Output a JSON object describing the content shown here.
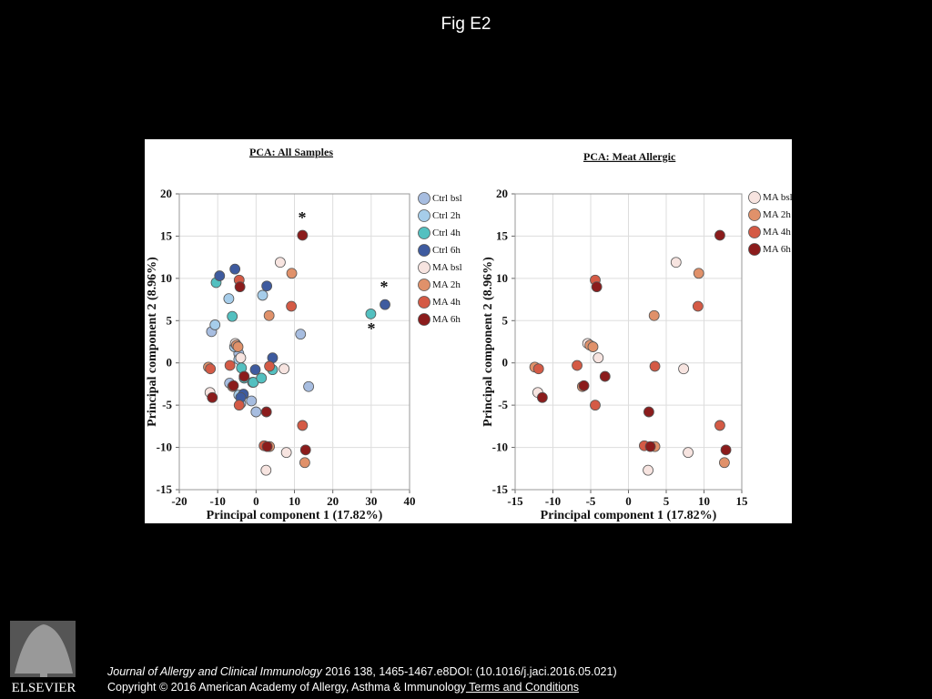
{
  "title": "Fig E2",
  "chart_data": [
    {
      "type": "scatter",
      "title": "PCA: All Samples",
      "x_label": "Principal component 1 (17.82%)",
      "y_label": "Principal component 2 (8.96%)",
      "xlim": [
        -20,
        40
      ],
      "ylim": [
        -15,
        20
      ],
      "xticks": [
        -20,
        -10,
        0,
        10,
        20,
        30,
        40
      ],
      "yticks": [
        -15,
        -10,
        -5,
        0,
        5,
        10,
        15,
        20
      ],
      "grid": true,
      "legend": "right",
      "annotations": [
        "*",
        "*",
        "*"
      ],
      "series": [
        {
          "name": "Ctrl bsl",
          "color": "#a7bde0",
          "x": [
            -11.6,
            11.6,
            13.7,
            0,
            -1.2,
            -4.0,
            -6.9,
            -4.5
          ],
          "values": [
            3.7,
            3.4,
            -2.8,
            -5.8,
            -4.5,
            -4.8,
            -2.4,
            1.1
          ]
        },
        {
          "name": "Ctrl 2h",
          "color": "#a6cdea",
          "x": [
            -10.7,
            -7.1,
            1.7,
            -4.5,
            -0.9,
            -4.5,
            -5.6
          ],
          "values": [
            4.5,
            7.6,
            8.0,
            0.4,
            -2.3,
            -3.8,
            1.9
          ]
        },
        {
          "name": "Ctrl 4h",
          "color": "#53c0c0",
          "x": [
            -10.4,
            -6.2,
            29.9,
            -3.8,
            -0.7,
            1.4,
            4.3,
            -3.1
          ],
          "values": [
            9.5,
            5.5,
            5.8,
            -0.6,
            -2.3,
            -1.8,
            -0.8,
            -1.8
          ]
        },
        {
          "name": "Ctrl 6h",
          "color": "#3e5b9f",
          "x": [
            -9.5,
            -5.5,
            2.8,
            33.6,
            4.3,
            -0.2,
            -3.3,
            -4.0
          ],
          "values": [
            10.3,
            11.1,
            9.1,
            6.9,
            0.6,
            -0.8,
            -3.7,
            -4.1
          ]
        },
        {
          "name": "MA bsl",
          "color": "#f7e4e0",
          "x": [
            6.3,
            -5.4,
            -4.0,
            -12.0,
            7.3,
            7.9,
            2.6
          ],
          "values": [
            11.9,
            2.3,
            0.6,
            -3.5,
            -0.7,
            -10.6,
            -12.7
          ]
        },
        {
          "name": "MA 2h",
          "color": "#e0916a",
          "x": [
            9.3,
            3.4,
            -5.1,
            -4.7,
            -12.4,
            -6.1,
            3.5,
            12.7
          ],
          "values": [
            10.6,
            5.6,
            2.1,
            1.9,
            -0.5,
            -2.8,
            -9.9,
            -11.8
          ]
        },
        {
          "name": "MA 4h",
          "color": "#d45a45",
          "x": [
            -4.4,
            9.2,
            -6.8,
            3.5,
            -11.9,
            -4.4,
            12.1,
            2.1
          ],
          "values": [
            9.8,
            6.7,
            -0.3,
            -0.4,
            -0.7,
            -5.0,
            -7.4,
            -9.8
          ]
        },
        {
          "name": "MA 6h",
          "color": "#8b1c1c",
          "x": [
            12.1,
            -4.2,
            -3.1,
            -5.9,
            -11.4,
            2.7,
            2.9,
            12.9
          ],
          "values": [
            15.1,
            9.0,
            -1.6,
            -2.7,
            -4.1,
            -5.8,
            -9.9,
            -10.3
          ]
        }
      ]
    },
    {
      "type": "scatter",
      "title": "PCA: Meat Allergic",
      "x_label": "Principal component 1 (17.82%)",
      "y_label": "Principal component 2 (8.96%)",
      "xlim": [
        -15,
        15
      ],
      "ylim": [
        -15,
        20
      ],
      "xticks": [
        -15,
        -10,
        -5,
        0,
        5,
        10,
        15
      ],
      "yticks": [
        -15,
        -10,
        -5,
        0,
        5,
        10,
        15,
        20
      ],
      "grid": true,
      "legend": "right",
      "series": [
        {
          "name": "MA bsl",
          "color": "#f7e4e0",
          "x": [
            6.3,
            -5.4,
            -4.0,
            -12.0,
            7.3,
            7.9,
            2.6
          ],
          "values": [
            11.9,
            2.3,
            0.6,
            -3.5,
            -0.7,
            -10.6,
            -12.7
          ]
        },
        {
          "name": "MA 2h",
          "color": "#e0916a",
          "x": [
            9.3,
            3.4,
            -5.1,
            -4.7,
            -12.4,
            -6.1,
            3.5,
            12.7
          ],
          "values": [
            10.6,
            5.6,
            2.1,
            1.9,
            -0.5,
            -2.8,
            -9.9,
            -11.8
          ]
        },
        {
          "name": "MA 4h",
          "color": "#d45a45",
          "x": [
            -4.4,
            9.2,
            -6.8,
            3.5,
            -11.9,
            -4.4,
            12.1,
            2.1
          ],
          "values": [
            9.8,
            6.7,
            -0.3,
            -0.4,
            -0.7,
            -5.0,
            -7.4,
            -9.8
          ]
        },
        {
          "name": "MA 6h",
          "color": "#8b1c1c",
          "x": [
            12.1,
            -4.2,
            -3.1,
            -5.9,
            -11.4,
            2.7,
            2.9,
            12.9
          ],
          "values": [
            15.1,
            9.0,
            -1.6,
            -2.7,
            -4.1,
            -5.8,
            -9.9,
            -10.3
          ]
        }
      ]
    }
  ],
  "citation": {
    "journal": "Journal of Allergy and Clinical Immunology",
    "details": " 2016 138, 1465-1467.e8DOI: (10.1016/j.jaci.2016.05.021)",
    "copyright": "Copyright © 2016 American Academy of Allergy, Asthma & Immunology",
    "link": " Terms and Conditions"
  },
  "logo": {
    "text": "ELSEVIER"
  }
}
